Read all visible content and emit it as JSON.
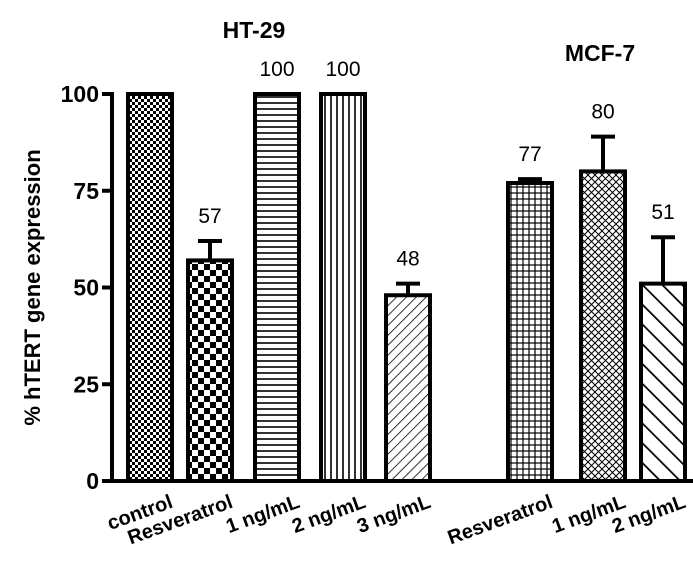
{
  "chart_data": {
    "type": "bar",
    "ylabel": "% hTERT gene expression",
    "ylim": [
      0,
      100
    ],
    "yticks": [
      0,
      25,
      50,
      75,
      100
    ],
    "groups": [
      {
        "title": "HT-29",
        "bars": [
          {
            "label": "control",
            "value": 100,
            "error": 0,
            "data_label": ""
          },
          {
            "label": "Resveratrol",
            "value": 57,
            "error": 5,
            "data_label": "57"
          },
          {
            "label": "1 ng/mL",
            "value": 100,
            "error": 0,
            "data_label": "100"
          },
          {
            "label": "2 ng/mL",
            "value": 100,
            "error": 0,
            "data_label": "100"
          },
          {
            "label": "3 ng/mL",
            "value": 48,
            "error": 3,
            "data_label": "48"
          }
        ]
      },
      {
        "title": "MCF-7",
        "bars": [
          {
            "label": "Resveratrol",
            "value": 77,
            "error": 1,
            "data_label": "77"
          },
          {
            "label": "1 ng/mL",
            "value": 80,
            "error": 9,
            "data_label": "80"
          },
          {
            "label": "2 ng/mL",
            "value": 51,
            "error": 12,
            "data_label": "51"
          }
        ]
      }
    ],
    "legend": "none",
    "grid": false
  }
}
